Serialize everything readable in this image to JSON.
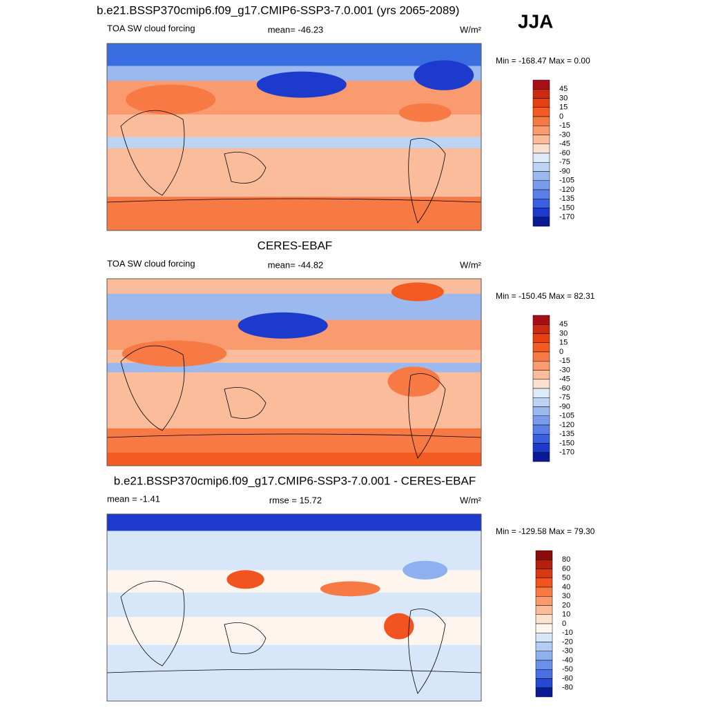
{
  "title": "b.e21.BSSP370cmip6.f09_g17.CMIP6-SSP3-7.0.001 (yrs 2065-2089)",
  "season": "JJA",
  "panels": [
    {
      "left": "TOA SW cloud forcing",
      "center": "mean= -46.23",
      "units": "W/m²",
      "minmax": "Min = -168.47 Max =   0.00",
      "colorbar": {
        "labels": [
          45,
          30,
          15,
          0,
          -15,
          -30,
          -45,
          -60,
          -75,
          -90,
          -105,
          -120,
          -135,
          -150,
          -170
        ],
        "colors": [
          "#a50f15",
          "#cb2a10",
          "#e5400f",
          "#f45b23",
          "#f77a45",
          "#f99a6f",
          "#fbbc9c",
          "#fde0cd",
          "#ddebf8",
          "#bcd3f3",
          "#9bb9ef",
          "#7a9cec",
          "#5a7fe8",
          "#3a5fe0",
          "#1c3bcc",
          "#0a1a94"
        ]
      }
    },
    {
      "title": "CERES-EBAF",
      "left": "TOA SW cloud forcing",
      "center": "mean= -44.82",
      "units": "W/m²",
      "minmax": "Min = -150.45 Max =  82.31",
      "colorbar": {
        "labels": [
          45,
          30,
          15,
          0,
          -15,
          -30,
          -45,
          -60,
          -75,
          -90,
          -105,
          -120,
          -135,
          -150,
          -170
        ],
        "colors": [
          "#a50f15",
          "#cb2a10",
          "#e5400f",
          "#f45b23",
          "#f77a45",
          "#f99a6f",
          "#fbbc9c",
          "#fde0cd",
          "#ddebf8",
          "#bcd3f3",
          "#9bb9ef",
          "#7a9cec",
          "#5a7fe8",
          "#3a5fe0",
          "#1c3bcc",
          "#0a1a94"
        ]
      }
    },
    {
      "title": "b.e21.BSSP370cmip6.f09_g17.CMIP6-SSP3-7.0.001 - CERES-EBAF",
      "left": "mean =  -1.41",
      "center": "rmse =  15.72",
      "units": "W/m²",
      "minmax": "Min = -129.58 Max =  79.30",
      "colorbar": {
        "labels": [
          80,
          60,
          50,
          40,
          30,
          20,
          10,
          0,
          -10,
          -20,
          -30,
          -40,
          -50,
          -60,
          -80
        ],
        "colors": [
          "#8b0a0a",
          "#b3200d",
          "#d83a10",
          "#f25420",
          "#f77a45",
          "#f99a6f",
          "#fbbc9c",
          "#fde0cd",
          "#fdf5ee",
          "#d7e6f8",
          "#b3cdf2",
          "#8fb0ee",
          "#6b90ea",
          "#4a6ee4",
          "#2649d4",
          "#0a1a94"
        ]
      }
    }
  ]
}
